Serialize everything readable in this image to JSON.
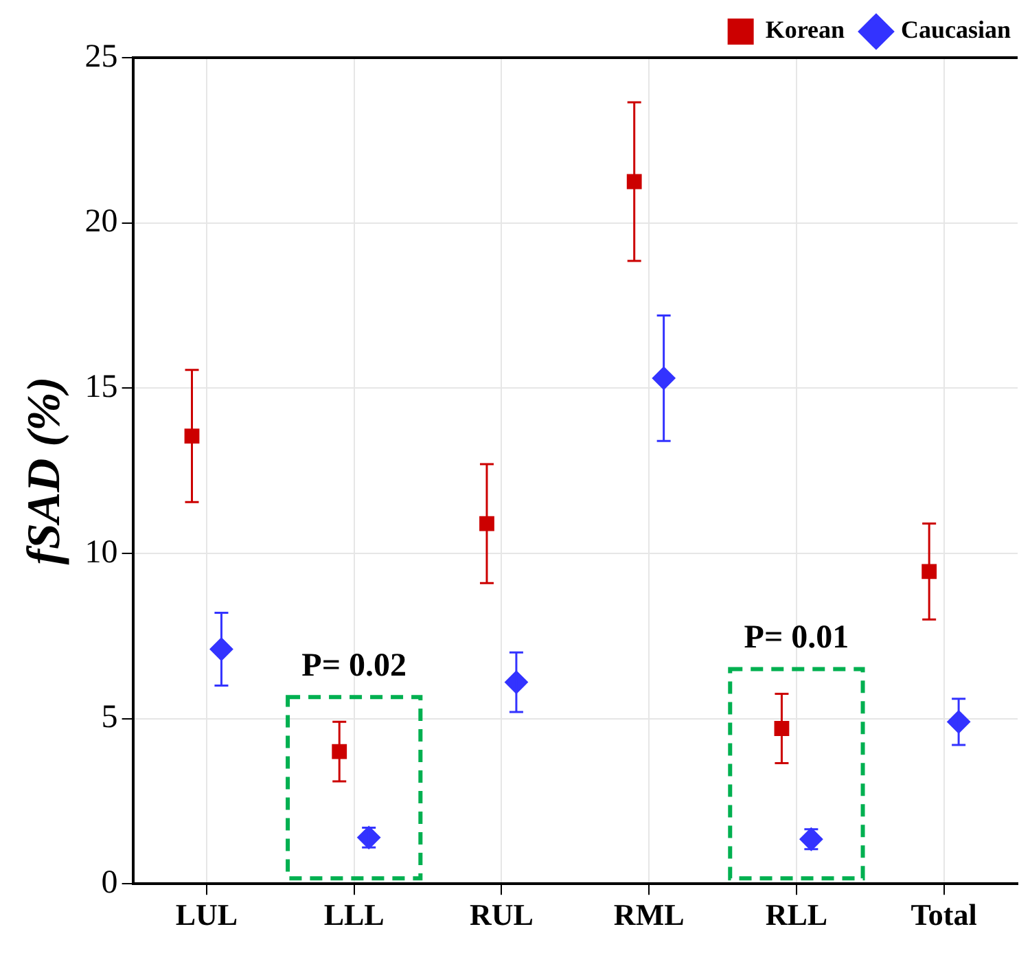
{
  "chart_data": {
    "type": "scatter",
    "ylabel": "fSAD (%)",
    "categories": [
      "LUL",
      "LLL",
      "RUL",
      "RML",
      "RLL",
      "Total"
    ],
    "series": [
      {
        "name": "Korean",
        "color": "#cc0000",
        "marker": "square",
        "values": [
          13.55,
          4.0,
          10.9,
          21.25,
          4.7,
          9.45
        ],
        "errors": [
          2.0,
          0.9,
          1.8,
          2.4,
          1.05,
          1.45
        ]
      },
      {
        "name": "Caucasian",
        "color": "#3333ff",
        "marker": "diamond",
        "values": [
          7.1,
          1.4,
          6.1,
          15.3,
          1.35,
          4.9
        ],
        "errors": [
          1.1,
          0.3,
          0.9,
          1.9,
          0.3,
          0.7
        ]
      }
    ],
    "ylim": [
      0,
      25
    ],
    "yticks": [
      0,
      5,
      10,
      15,
      20,
      25
    ],
    "grid": true,
    "legend": "top right",
    "annotations": [
      "P= 0.02",
      "P= 0.01"
    ]
  }
}
